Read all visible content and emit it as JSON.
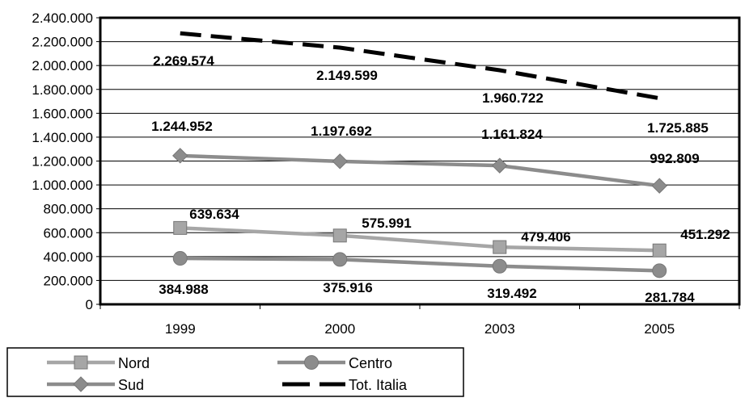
{
  "chart_data": {
    "type": "line",
    "categories": [
      "1999",
      "2000",
      "2003",
      "2005"
    ],
    "ylim": [
      0,
      2400000
    ],
    "y_ticks": [
      "0",
      "200.000",
      "400.000",
      "600.000",
      "800.000",
      "1.000.000",
      "1.200.000",
      "1.400.000",
      "1.600.000",
      "1.800.000",
      "2.000.000",
      "2.200.000",
      "2.400.000"
    ],
    "grid": true,
    "legend_position": "bottom-left",
    "series": [
      {
        "name": "Nord",
        "marker": "square",
        "color": "#a6a6a6",
        "values": [
          639634,
          575991,
          479406,
          451292
        ],
        "labels": [
          "639.634",
          "575.991",
          "479.406",
          "451.292"
        ]
      },
      {
        "name": "Centro",
        "marker": "circle",
        "color": "#8c8c8c",
        "values": [
          384988,
          375916,
          319492,
          281784
        ],
        "labels": [
          "384.988",
          "375.916",
          "319.492",
          "281.784"
        ]
      },
      {
        "name": "Sud",
        "marker": "diamond",
        "color": "#8c8c8c",
        "values": [
          1244952,
          1197692,
          1161824,
          992809
        ],
        "labels": [
          "1.244.952",
          "1.197.692",
          "1.161.824",
          "992.809"
        ]
      },
      {
        "name": "Tot. Italia",
        "marker": "none",
        "dashed": true,
        "color": "#000000",
        "values": [
          2269574,
          2149599,
          1960722,
          1725885
        ],
        "labels": [
          "2.269.574",
          "2.149.599",
          "1.960.722",
          "1.725.885"
        ]
      }
    ]
  }
}
